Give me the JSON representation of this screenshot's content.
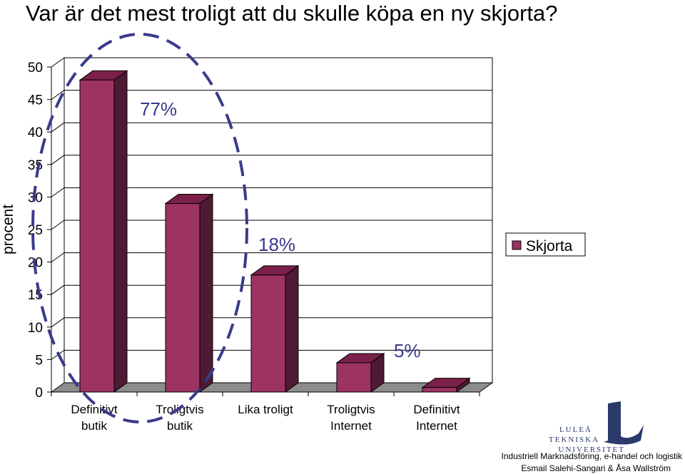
{
  "chart_data": {
    "type": "bar",
    "title": "Var är det mest troligt att du skulle köpa en ny skjorta?",
    "ylabel": "procent",
    "xlabel": "",
    "ylim": [
      0,
      50
    ],
    "yticks": [
      0,
      5,
      10,
      15,
      20,
      25,
      30,
      35,
      40,
      45,
      50
    ],
    "grid": true,
    "legend_position": "right",
    "categories": [
      [
        "Definitivt",
        "butik"
      ],
      [
        "Troligtvis",
        "butik"
      ],
      [
        "Lika troligt"
      ],
      [
        "Troligtvis",
        "Internet"
      ],
      [
        "Definitivt",
        "Internet"
      ]
    ],
    "series": [
      {
        "name": "Skjorta",
        "values": [
          48,
          29,
          18,
          4.5,
          0.7
        ],
        "color": "#9c3362"
      }
    ],
    "annotations": [
      {
        "text": "77%",
        "group": "ellipse"
      },
      {
        "text": "18%"
      },
      {
        "text": "5%"
      }
    ],
    "ellipse_color": "#3a3a8c"
  },
  "footer": {
    "line1": "Industriell Marknadsföring, e-handel och logistik",
    "line2": "Esmail Salehi-Sangari & Åsa Wallström"
  },
  "logo": {
    "line1": "LULEÅ",
    "line2": "TEKNISKA",
    "line3": "UNIVERSITET"
  }
}
